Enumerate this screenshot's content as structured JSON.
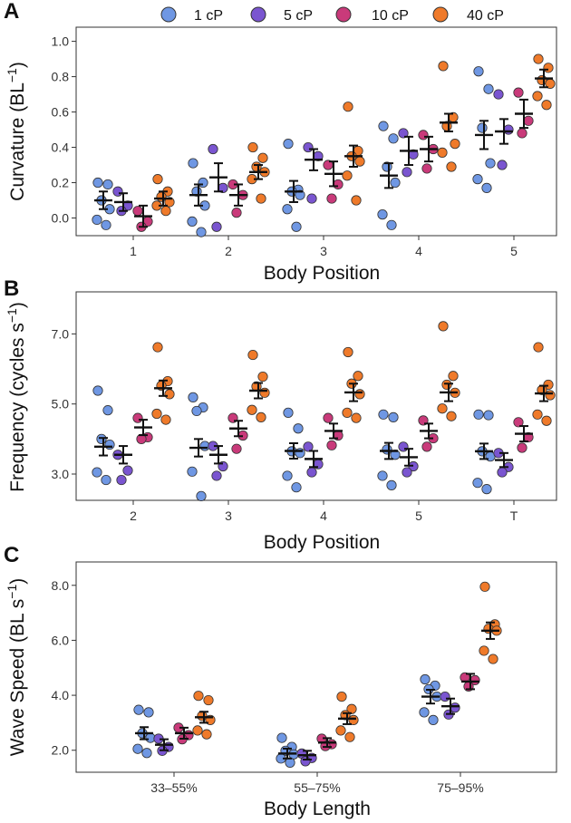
{
  "legend": [
    {
      "label": "1 cP",
      "color": "#6f97e3"
    },
    {
      "label": "5 cP",
      "color": "#7a55d0"
    },
    {
      "label": "10 cP",
      "color": "#c93a7a"
    },
    {
      "label": "40 cP",
      "color": "#ef7a2a"
    }
  ],
  "chart_data": [
    {
      "panel": "A",
      "type": "scatter",
      "xlabel": "Body Position",
      "ylabel_main": "Curvature (BL",
      "ylabel_sup": "−1",
      "ylabel_end": ")",
      "ylim": [
        -0.1,
        1.08
      ],
      "yticks": [
        0.0,
        0.2,
        0.4,
        0.6,
        0.8,
        1.0
      ],
      "ytick_labels": [
        "0.0",
        "0.2",
        "0.4",
        "0.6",
        "0.8",
        "1.0"
      ],
      "categories": [
        "1",
        "2",
        "3",
        "4",
        "5"
      ],
      "series": [
        {
          "name": "1 cP",
          "mean": [
            0.1,
            0.13,
            0.15,
            0.24,
            0.47
          ],
          "sem": [
            0.05,
            0.06,
            0.06,
            0.07,
            0.08
          ],
          "points": [
            [
              0.2,
              0.19,
              0.1,
              0.05,
              -0.01,
              -0.04
            ],
            [
              0.31,
              0.2,
              0.15,
              0.07,
              -0.02,
              -0.08
            ],
            [
              0.42,
              0.16,
              0.15,
              0.13,
              0.05,
              -0.05
            ],
            [
              0.52,
              0.45,
              0.29,
              0.2,
              0.02,
              -0.04
            ],
            [
              0.83,
              0.73,
              0.51,
              0.31,
              0.22,
              0.17
            ]
          ]
        },
        {
          "name": "5 cP",
          "mean": [
            0.09,
            0.23,
            0.33,
            0.38,
            0.49
          ],
          "sem": [
            0.05,
            0.08,
            0.06,
            0.08,
            0.07
          ],
          "points": [
            [
              0.15,
              0.07,
              0.04
            ],
            [
              0.39,
              0.17,
              -0.05
            ],
            [
              0.4,
              0.35,
              0.11
            ],
            [
              0.48,
              0.36,
              0.26
            ],
            [
              0.7,
              0.5,
              0.3
            ]
          ]
        },
        {
          "name": "10 cP",
          "mean": [
            0.01,
            0.13,
            0.25,
            0.39,
            0.59
          ],
          "sem": [
            0.06,
            0.06,
            0.07,
            0.07,
            0.08
          ],
          "points": [
            [
              0.04,
              -0.02,
              -0.05
            ],
            [
              0.19,
              0.13,
              0.03
            ],
            [
              0.3,
              0.19,
              0.11
            ],
            [
              0.47,
              0.39,
              0.28
            ],
            [
              0.71,
              0.55,
              0.48
            ]
          ]
        },
        {
          "name": "40 cP",
          "mean": [
            0.11,
            0.26,
            0.35,
            0.54,
            0.79
          ],
          "sem": [
            0.04,
            0.04,
            0.06,
            0.05,
            0.05
          ],
          "points": [
            [
              0.22,
              0.15,
              0.12,
              0.09,
              0.07,
              0.04
            ],
            [
              0.4,
              0.34,
              0.29,
              0.26,
              0.22,
              0.11
            ],
            [
              0.63,
              0.38,
              0.35,
              0.32,
              0.24,
              0.1
            ],
            [
              0.86,
              0.57,
              0.52,
              0.42,
              0.37,
              0.29
            ],
            [
              0.9,
              0.85,
              0.78,
              0.76,
              0.69,
              0.64
            ]
          ]
        }
      ]
    },
    {
      "panel": "B",
      "type": "scatter",
      "xlabel": "Body Position",
      "ylabel_main": "Frequency (cycles s",
      "ylabel_sup": "−1",
      "ylabel_end": ")",
      "ylim": [
        2.25,
        8.2
      ],
      "yticks": [
        3.0,
        5.0,
        7.0
      ],
      "ytick_labels": [
        "3.0",
        "5.0",
        "7.0"
      ],
      "categories": [
        "2",
        "3",
        "4",
        "5",
        "T"
      ],
      "series": [
        {
          "name": "1 cP",
          "mean": [
            3.78,
            3.75,
            3.66,
            3.66,
            3.65
          ],
          "sem": [
            0.25,
            0.25,
            0.22,
            0.23,
            0.22
          ],
          "points": [
            [
              5.38,
              4.82,
              4.0,
              3.84,
              3.05,
              2.83
            ],
            [
              5.19,
              4.9,
              4.8,
              3.8,
              3.07,
              2.37
            ],
            [
              4.75,
              4.3,
              3.65,
              3.6,
              2.95,
              2.62
            ],
            [
              4.7,
              4.62,
              3.7,
              3.55,
              2.95,
              2.68
            ],
            [
              4.7,
              4.68,
              3.65,
              3.5,
              2.75,
              2.57
            ]
          ]
        },
        {
          "name": "5 cP",
          "mean": [
            3.55,
            3.55,
            3.43,
            3.48,
            3.4
          ],
          "sem": [
            0.25,
            0.25,
            0.23,
            0.24,
            0.2
          ],
          "points": [
            [
              3.55,
              3.1,
              2.83
            ],
            [
              3.8,
              3.22,
              2.95
            ],
            [
              3.78,
              3.28,
              3.05
            ],
            [
              3.78,
              3.22,
              3.05
            ],
            [
              3.6,
              3.2,
              3.05
            ]
          ]
        },
        {
          "name": "10 cP",
          "mean": [
            4.33,
            4.3,
            4.23,
            4.23,
            4.15
          ],
          "sem": [
            0.22,
            0.22,
            0.21,
            0.21,
            0.22
          ],
          "points": [
            [
              4.6,
              4.05,
              4.0
            ],
            [
              4.6,
              4.1,
              3.72
            ],
            [
              4.6,
              4.1,
              3.82
            ],
            [
              4.53,
              4.02,
              3.78
            ],
            [
              4.48,
              4.05,
              3.75
            ]
          ]
        },
        {
          "name": "40 cP",
          "mean": [
            5.45,
            5.38,
            5.33,
            5.33,
            5.3
          ],
          "sem": [
            0.22,
            0.22,
            0.25,
            0.25,
            0.22
          ],
          "points": [
            [
              6.62,
              5.65,
              5.52,
              5.28,
              4.72,
              4.55
            ],
            [
              6.4,
              5.78,
              5.5,
              5.32,
              4.83,
              4.62
            ],
            [
              6.48,
              5.8,
              5.58,
              5.28,
              4.75,
              4.6
            ],
            [
              7.22,
              5.8,
              5.55,
              5.32,
              4.87,
              4.65
            ],
            [
              6.62,
              5.55,
              5.4,
              5.25,
              4.7,
              4.52
            ]
          ]
        }
      ]
    },
    {
      "panel": "C",
      "type": "scatter",
      "xlabel": "Body Length",
      "ylabel_main": "Wave Speed (BL s",
      "ylabel_sup": "−1",
      "ylabel_end": ")",
      "ylim": [
        1.2,
        8.85
      ],
      "yticks": [
        2.0,
        4.0,
        6.0,
        8.0
      ],
      "ytick_labels": [
        "2.0",
        "4.0",
        "6.0",
        "8.0"
      ],
      "categories": [
        "33–55%",
        "55–75%",
        "75–95%"
      ],
      "series": [
        {
          "name": "1 cP",
          "mean": [
            2.62,
            1.88,
            3.95
          ],
          "sem": [
            0.22,
            0.18,
            0.25
          ],
          "points": [
            [
              3.47,
              3.38,
              2.62,
              2.45,
              2.05,
              1.9
            ],
            [
              2.45,
              2.12,
              1.98,
              1.85,
              1.7,
              1.55
            ],
            [
              4.58,
              4.35,
              4.22,
              3.95,
              3.38,
              3.1
            ]
          ]
        },
        {
          "name": "5 cP",
          "mean": [
            2.2,
            1.82,
            3.6
          ],
          "sem": [
            0.2,
            0.16,
            0.28
          ],
          "points": [
            [
              2.42,
              2.12,
              1.98
            ],
            [
              1.88,
              1.72,
              1.6
            ],
            [
              3.95,
              3.55,
              3.3
            ]
          ]
        },
        {
          "name": "10 cP",
          "mean": [
            2.62,
            2.28,
            4.5
          ],
          "sem": [
            0.2,
            0.16,
            0.28
          ],
          "points": [
            [
              2.82,
              2.55,
              2.4
            ],
            [
              2.42,
              2.22,
              2.15
            ],
            [
              4.65,
              4.55,
              4.32
            ]
          ]
        },
        {
          "name": "40 cP",
          "mean": [
            3.2,
            3.15,
            6.35
          ],
          "sem": [
            0.2,
            0.2,
            0.3
          ],
          "points": [
            [
              3.98,
              3.82,
              3.25,
              3.1,
              2.72,
              2.58
            ],
            [
              3.95,
              3.5,
              3.28,
              3.1,
              2.72,
              2.48
            ],
            [
              7.95,
              6.58,
              6.42,
              6.35,
              5.62,
              5.32
            ]
          ]
        }
      ]
    }
  ]
}
